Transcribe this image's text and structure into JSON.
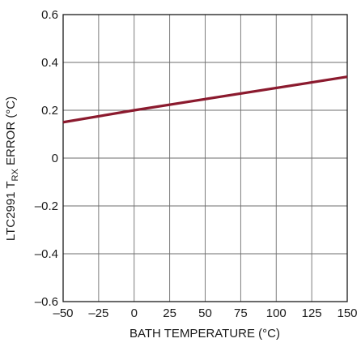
{
  "chart_data": {
    "type": "line",
    "title": "",
    "xlabel": "BATH TEMPERATURE (°C)",
    "ylabel": {
      "prefix": "LTC2991 T",
      "subscript": "RX",
      "suffix": " ERROR (°C)"
    },
    "xlim": [
      -50,
      150
    ],
    "ylim": [
      -0.6,
      0.6
    ],
    "x_ticks": [
      -50,
      -25,
      0,
      25,
      50,
      75,
      100,
      125,
      150
    ],
    "x_tick_labels": [
      "–50",
      "–25",
      "0",
      "25",
      "50",
      "75",
      "100",
      "125",
      "150"
    ],
    "y_ticks": [
      0.6,
      0.4,
      0.2,
      0,
      -0.2,
      -0.4,
      -0.6
    ],
    "y_tick_labels": [
      "0.6",
      "0.4",
      "0.2",
      "0",
      "–0.2",
      "–0.4",
      "–0.6"
    ],
    "grid": true,
    "series": [
      {
        "color": "#8b1a2e",
        "x": [
          -50,
          0,
          150
        ],
        "y": [
          0.15,
          0.2,
          0.34
        ]
      }
    ]
  }
}
